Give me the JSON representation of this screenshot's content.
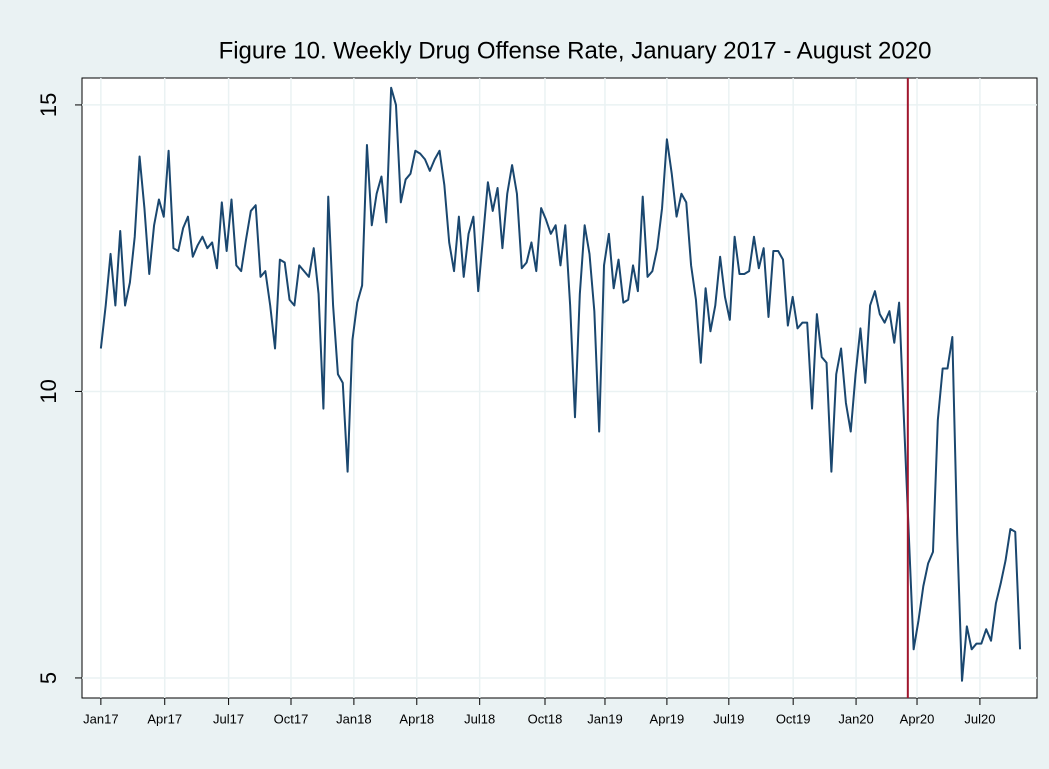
{
  "chart_data": {
    "type": "line",
    "title": "Figure 10. Weekly Drug Offense Rate, January 2017 - August 2020",
    "x": [
      0,
      1,
      2,
      3,
      4,
      5,
      6,
      7,
      8,
      9,
      10,
      11,
      12,
      13,
      14,
      15,
      16,
      17,
      18,
      19,
      20,
      21,
      22,
      23,
      24,
      25,
      26,
      27,
      28,
      29,
      30,
      31,
      32,
      33,
      34,
      35,
      36,
      37,
      38,
      39,
      40,
      41,
      42,
      43,
      44,
      45,
      46,
      47,
      48,
      49,
      50,
      51,
      52,
      53,
      54,
      55,
      56,
      57,
      58,
      59,
      60,
      61,
      62,
      63,
      64,
      65,
      66,
      67,
      68,
      69,
      70,
      71,
      72,
      73,
      74,
      75,
      76,
      77,
      78,
      79,
      80,
      81,
      82,
      83,
      84,
      85,
      86,
      87,
      88,
      89,
      90,
      91,
      92,
      93,
      94,
      95,
      96,
      97,
      98,
      99,
      100,
      101,
      102,
      103,
      104,
      105,
      106,
      107,
      108,
      109,
      110,
      111,
      112,
      113,
      114,
      115,
      116,
      117,
      118,
      119,
      120,
      121,
      122,
      123,
      124,
      125,
      126,
      127,
      128,
      129,
      130,
      131,
      132,
      133,
      134,
      135,
      136,
      137,
      138,
      139,
      140,
      141,
      142,
      143,
      144,
      145,
      146,
      147,
      148,
      149,
      150,
      151,
      152,
      153,
      154,
      155,
      156,
      157,
      158,
      159,
      160,
      161,
      162,
      163,
      164,
      165,
      166,
      167,
      168,
      169,
      170,
      171,
      172,
      173,
      174,
      175,
      176,
      177,
      178,
      179,
      180,
      181,
      182,
      183,
      184,
      185,
      186,
      187,
      188,
      189,
      190
    ],
    "series": [
      {
        "color": "#1a476f",
        "values": [
          10.75,
          11.5,
          12.4,
          11.5,
          12.8,
          11.5,
          11.9,
          12.7,
          14.1,
          13.2,
          12.05,
          12.9,
          13.35,
          13.05,
          14.2,
          12.5,
          12.45,
          12.85,
          13.05,
          12.35,
          12.55,
          12.7,
          12.5,
          12.6,
          12.15,
          13.3,
          12.45,
          13.35,
          12.2,
          12.1,
          12.65,
          13.15,
          13.25,
          12.0,
          12.1,
          11.5,
          10.75,
          12.3,
          12.25,
          11.6,
          11.5,
          12.2,
          12.1,
          12.0,
          12.5,
          11.7,
          9.7,
          13.4,
          11.5,
          10.3,
          10.15,
          8.6,
          10.9,
          11.55,
          11.85,
          14.3,
          12.9,
          13.45,
          13.75,
          12.95,
          15.3,
          15.0,
          13.3,
          13.7,
          13.8,
          14.2,
          14.15,
          14.05,
          13.85,
          14.05,
          14.2,
          13.6,
          12.6,
          12.1,
          13.05,
          12.0,
          12.75,
          13.05,
          11.75,
          12.7,
          13.65,
          13.15,
          13.55,
          12.5,
          13.45,
          13.95,
          13.45,
          12.15,
          12.25,
          12.6,
          12.1,
          13.2,
          13.0,
          12.75,
          12.9,
          12.2,
          12.9,
          11.5,
          9.55,
          11.7,
          12.9,
          12.4,
          11.4,
          9.3,
          12.2,
          12.75,
          11.8,
          12.3,
          11.55,
          11.6,
          12.2,
          11.75,
          13.4,
          12.0,
          12.1,
          12.5,
          13.2,
          14.4,
          13.8,
          13.05,
          13.45,
          13.3,
          12.2,
          11.6,
          10.5,
          11.8,
          11.05,
          11.5,
          12.35,
          11.65,
          11.25,
          12.7,
          12.05,
          12.05,
          12.1,
          12.7,
          12.15,
          12.5,
          11.3,
          12.45,
          12.45,
          12.3,
          11.15,
          11.65,
          11.1,
          11.2,
          11.2,
          9.7,
          11.35,
          10.6,
          10.5,
          8.6,
          10.3,
          10.75,
          9.8,
          9.3,
          10.3,
          11.1,
          10.15,
          11.5,
          11.75,
          11.35,
          11.2,
          11.4,
          10.85,
          11.55,
          9.5,
          7.5,
          5.5,
          6.0,
          6.6,
          7.0,
          7.2,
          9.5,
          10.4,
          10.4,
          10.95,
          7.5,
          4.95,
          5.9,
          5.5,
          5.6,
          5.6,
          5.85,
          5.65,
          6.3,
          6.65,
          7.05,
          7.6,
          7.55,
          5.5
        ]
      }
    ],
    "xlim": [
      -3.9,
      193.5
    ],
    "xticks": [
      {
        "value": 0,
        "label": "Jan17"
      },
      {
        "value": 13.2,
        "label": "Apr17"
      },
      {
        "value": 26.4,
        "label": "Jul17"
      },
      {
        "value": 39.3,
        "label": "Oct17"
      },
      {
        "value": 52.3,
        "label": "Jan18"
      },
      {
        "value": 65.3,
        "label": "Apr18"
      },
      {
        "value": 78.3,
        "label": "Jul18"
      },
      {
        "value": 91.8,
        "label": "Oct18"
      },
      {
        "value": 104.2,
        "label": "Jan19"
      },
      {
        "value": 117,
        "label": "Apr19"
      },
      {
        "value": 129.8,
        "label": "Jul19"
      },
      {
        "value": 143.1,
        "label": "Oct19"
      },
      {
        "value": 156.1,
        "label": "Jan20"
      },
      {
        "value": 168.7,
        "label": "Apr20"
      },
      {
        "value": 181.7,
        "label": "Jul20"
      }
    ],
    "ylim": [
      4.65,
      15.47
    ],
    "yticks": [
      5,
      10,
      15
    ],
    "grid": true,
    "vline": {
      "value": 166.8,
      "color": "#a0162d"
    }
  }
}
